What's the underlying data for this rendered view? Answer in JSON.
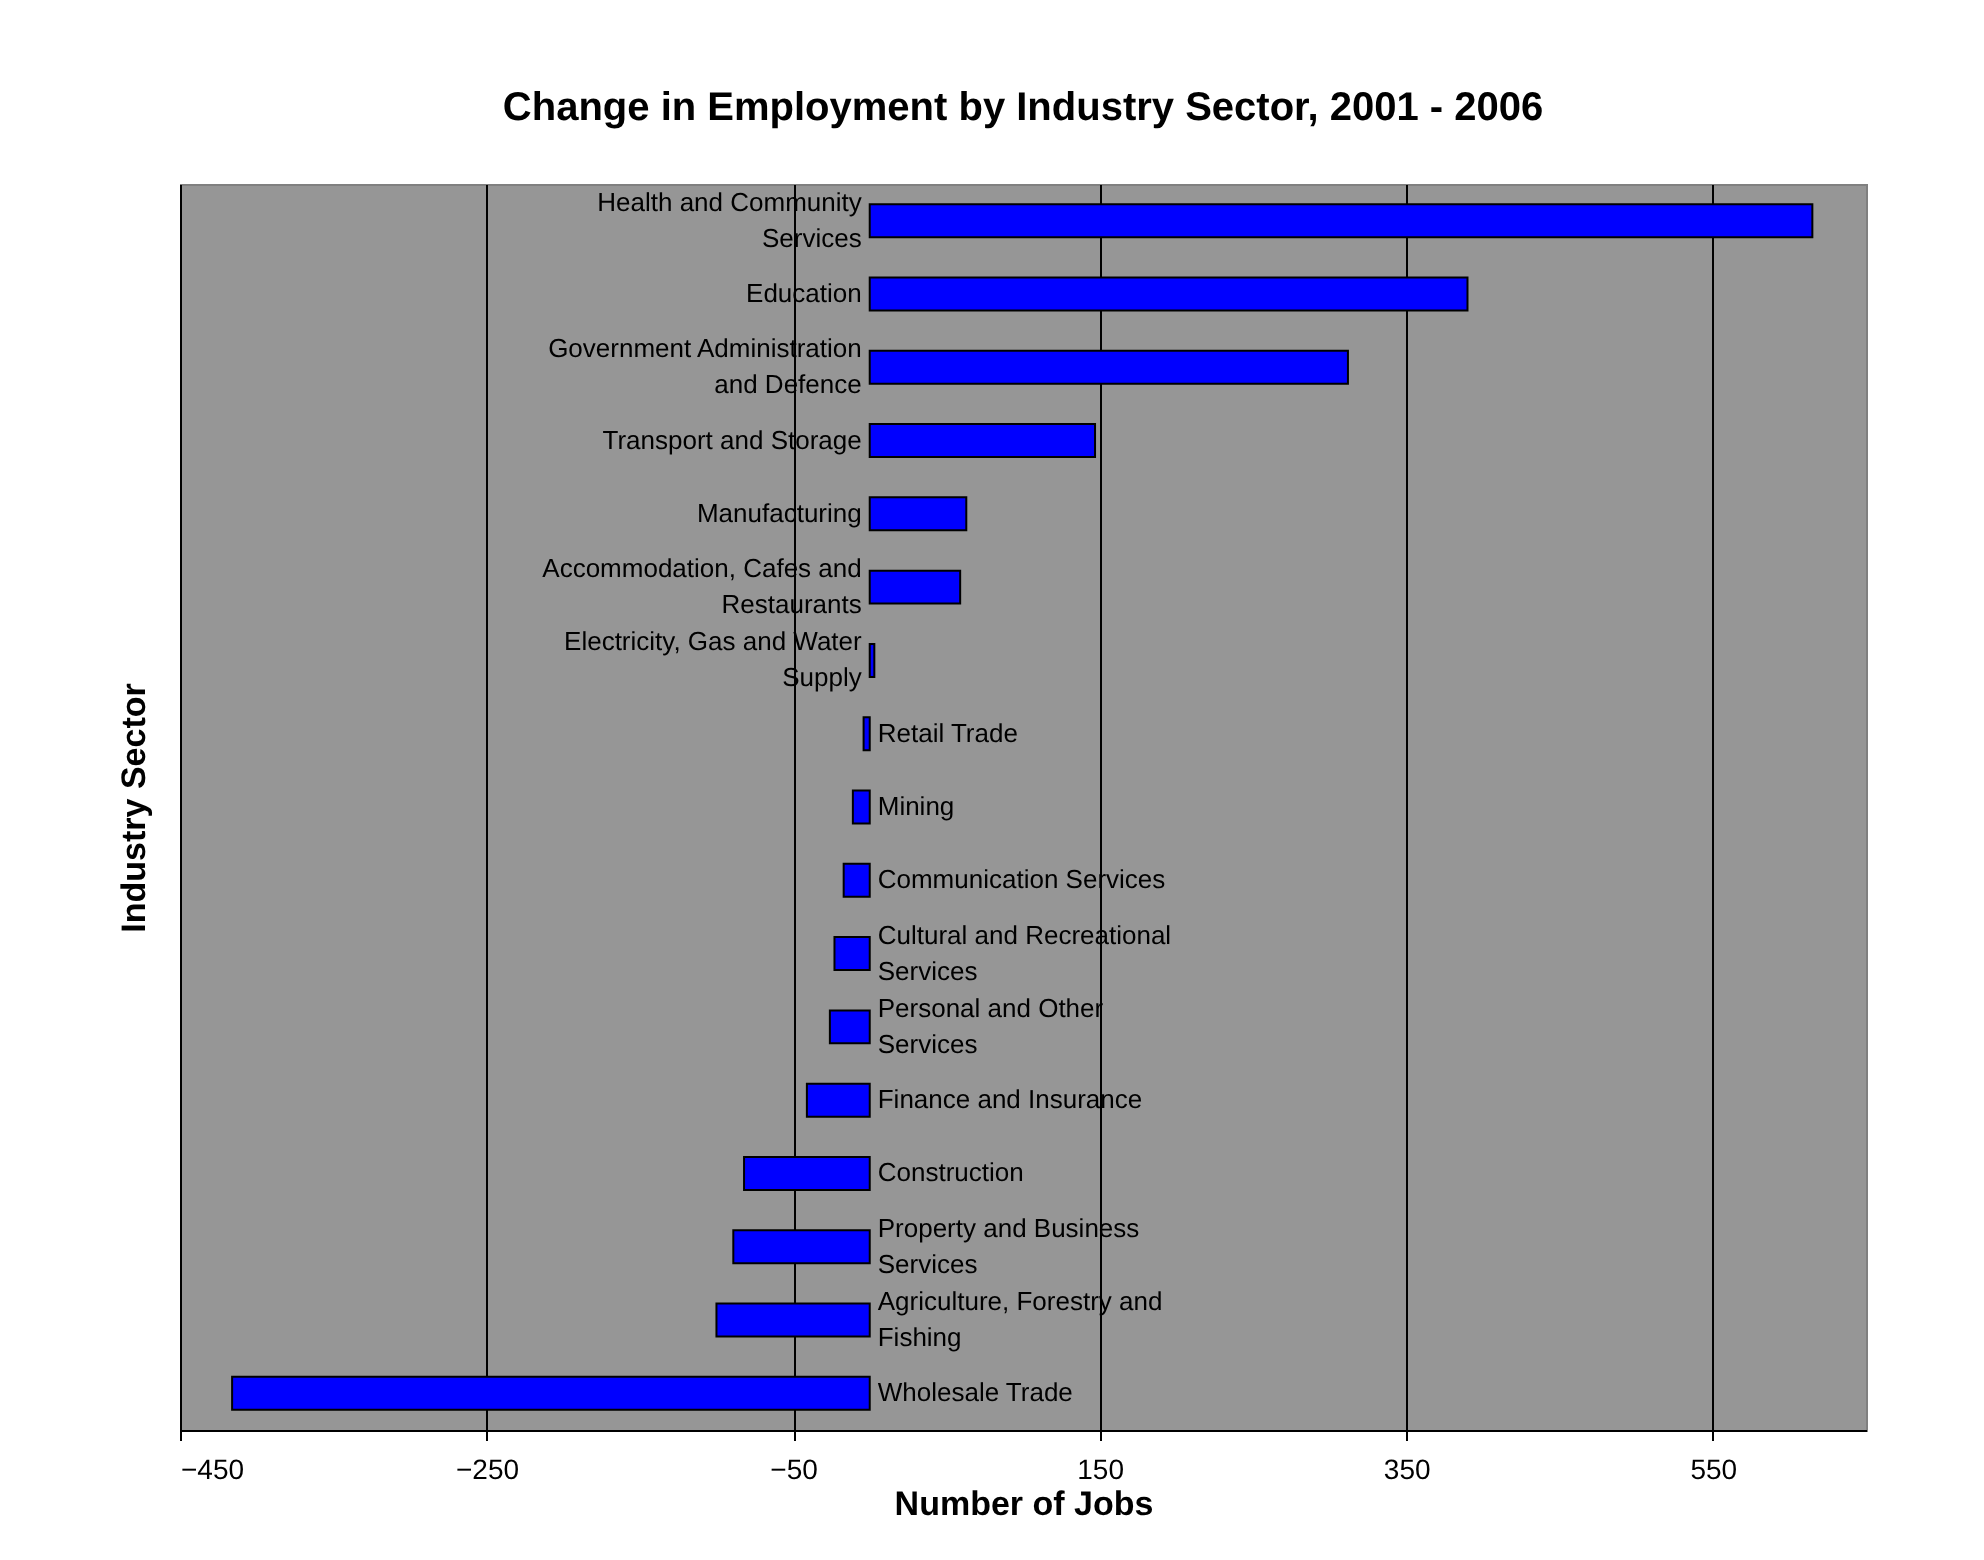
{
  "chart_data": {
    "type": "bar",
    "orientation": "horizontal",
    "title": "Change in Employment by Industry Sector, 2001 - 2006",
    "xlabel": "Number of Jobs",
    "ylabel": "Industry Sector",
    "categories": [
      "Health and Community Services",
      "Education",
      "Government Administration and Defence",
      "Transport and Storage",
      "Manufacturing",
      "Accommodation, Cafes and Restaurants",
      "Electricity, Gas and Water Supply",
      "Retail Trade",
      "Mining",
      "Communication Services",
      "Cultural and Recreational Services",
      "Personal and Other Services",
      "Finance and Insurance",
      "Construction",
      "Property and Business Services",
      "Agriculture, Forestry and Fishing",
      "Wholesale Trade"
    ],
    "values": [
      615,
      390,
      312,
      147,
      63,
      59,
      3,
      -4,
      -11,
      -17,
      -23,
      -26,
      -41,
      -82,
      -89,
      -100,
      -416
    ],
    "color": "#0000ff",
    "xlim": [
      -450,
      650
    ],
    "xticks": [
      -450,
      -250,
      -50,
      150,
      350,
      550
    ],
    "grid": "x"
  }
}
